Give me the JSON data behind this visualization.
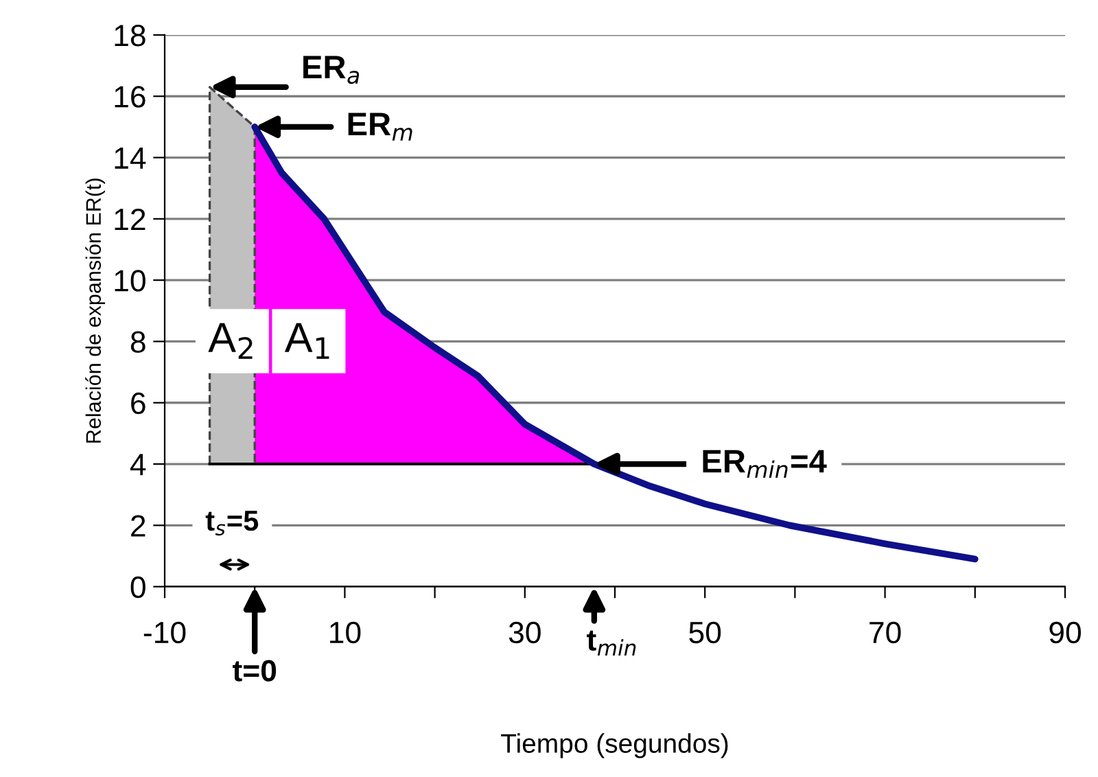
{
  "chart_data": {
    "type": "line",
    "xlabel": "Tiempo (segundos)",
    "ylabel": "Relación de expansión ER(t)",
    "xlim": [
      -10,
      90
    ],
    "ylim": [
      0,
      18
    ],
    "xticks": [
      -10,
      {
        "value": 0,
        "label": null
      },
      10,
      {
        "value": 20,
        "label": null
      },
      30,
      {
        "value": 40,
        "label": null
      },
      50,
      {
        "value": 60,
        "label": null
      },
      70,
      {
        "value": 80,
        "label": null
      },
      90
    ],
    "yticks": [
      0,
      2,
      4,
      6,
      8,
      10,
      12,
      14,
      16,
      18
    ],
    "grid": "y",
    "marker": "none",
    "ref_lines": [
      {
        "axis": "y",
        "value": 4,
        "label": "ER$_{min}$=4",
        "color": "#000000"
      }
    ],
    "series": [
      {
        "type": "area",
        "color": "#c0c0c0",
        "line_style": "dashed",
        "x": [
          -5,
          0
        ],
        "values": [
          16.3,
          15
        ]
      },
      {
        "type": "area",
        "color": "#ff00ff",
        "x": [
          0,
          3,
          7.7,
          14.4,
          20,
          24.8,
          30,
          37.7
        ],
        "values": [
          15,
          13.5,
          12,
          8.96,
          7.8,
          6.87,
          5.3,
          4
        ]
      },
      {
        "color": "#10108a",
        "line_style": "solid",
        "x": [
          0,
          3,
          7.7,
          14.4,
          20,
          24.8,
          30,
          37.7,
          43.9,
          50,
          59.4,
          70,
          80
        ],
        "values": [
          15,
          13.5,
          12,
          8.96,
          7.8,
          6.87,
          5.3,
          4,
          3.28,
          2.7,
          2.0,
          1.4,
          0.9
        ]
      }
    ],
    "annotations": [
      {
        "text": "ER$_{a}$",
        "x": -5,
        "y": 16.3
      },
      {
        "text": "ER$_{m}$",
        "x": 0,
        "y": 15
      },
      "t$_{min}$",
      "t=0",
      "t$_{s}$=5",
      "A$_{2}$",
      "A$_{1}$"
    ]
  }
}
